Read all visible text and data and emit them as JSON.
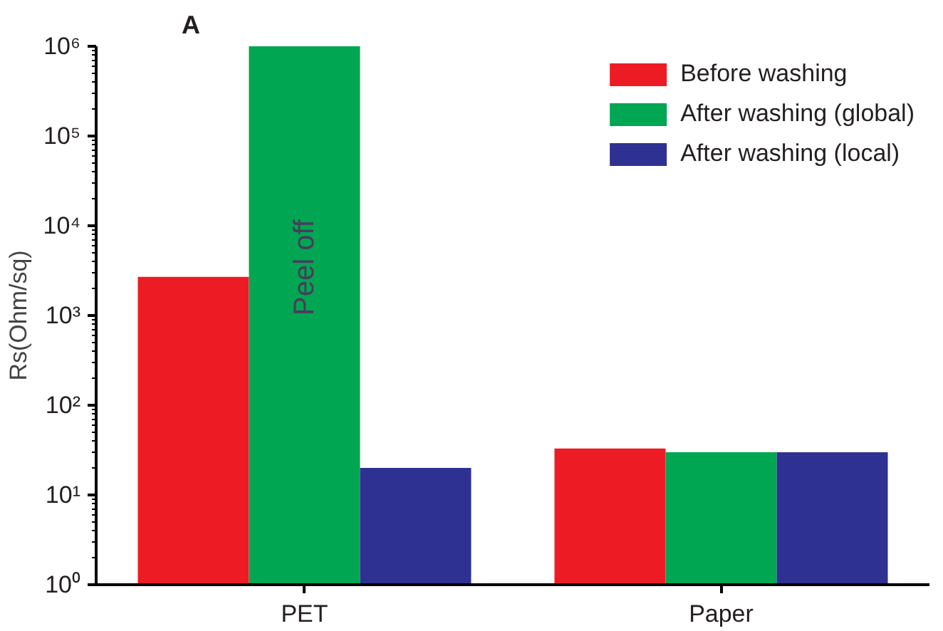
{
  "chart_data": {
    "type": "bar",
    "title": "A",
    "ylabel": "Rs(Ohm/sq)",
    "categories": [
      "PET",
      "Paper"
    ],
    "series": [
      {
        "name": "Before washing",
        "color": "#ed1c24",
        "values": [
          2700,
          33
        ]
      },
      {
        "name": "After washing (global)",
        "color": "#00a651",
        "values": [
          1000000,
          30
        ]
      },
      {
        "name": "After washing (local)",
        "color": "#2e3192",
        "values": [
          20,
          30
        ]
      }
    ],
    "log": "y",
    "ylim": [
      1,
      1000000
    ],
    "yticks": [
      {
        "value": 1,
        "label": "10⁰"
      },
      {
        "value": 10,
        "label": "10¹"
      },
      {
        "value": 100,
        "label": "10²"
      },
      {
        "value": 1000,
        "label": "10³"
      },
      {
        "value": 10000,
        "label": "10⁴"
      },
      {
        "value": 100000,
        "label": "10⁵"
      },
      {
        "value": 1000000,
        "label": "10⁶"
      }
    ],
    "annotations": [
      "Peel off"
    ],
    "legend": "top right",
    "grid": false
  }
}
